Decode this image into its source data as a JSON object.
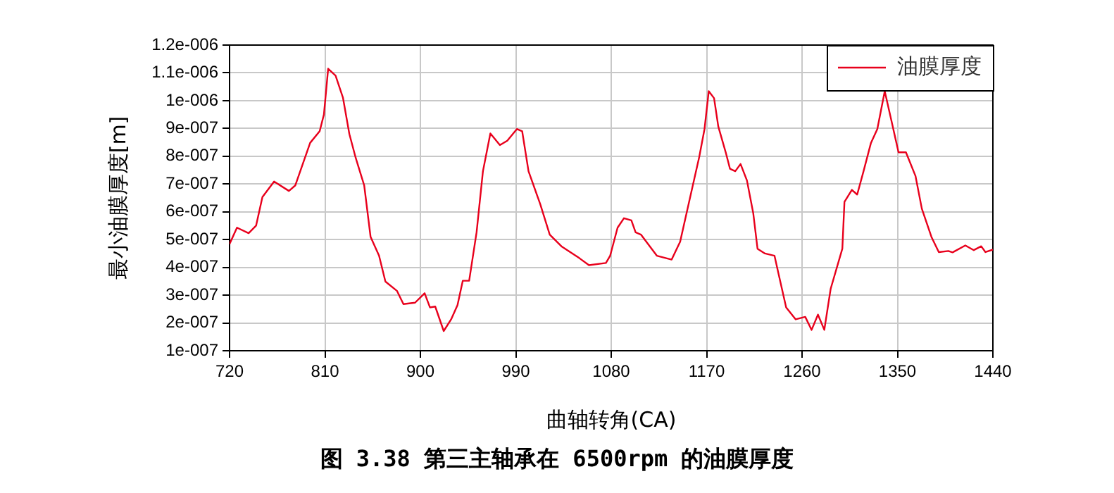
{
  "chart_data": {
    "type": "line",
    "title": "图 3.38 第三主轴承在 6500rpm 的油膜厚度",
    "xlabel": "曲轴转角(CA)",
    "ylabel": "最小油膜厚度[m]",
    "xlim": [
      720,
      1440
    ],
    "xticks": [
      720,
      810,
      900,
      990,
      1080,
      1170,
      1260,
      1350,
      1440
    ],
    "ylim": [
      1e-07,
      1.2e-06
    ],
    "yticks": [
      {
        "value": 1e-07,
        "label": "1e-007"
      },
      {
        "value": 2e-07,
        "label": "2e-007"
      },
      {
        "value": 3e-07,
        "label": "3e-007"
      },
      {
        "value": 4e-07,
        "label": "4e-007"
      },
      {
        "value": 5e-07,
        "label": "5e-007"
      },
      {
        "value": 6e-07,
        "label": "6e-007"
      },
      {
        "value": 7e-07,
        "label": "7e-007"
      },
      {
        "value": 8e-07,
        "label": "8e-007"
      },
      {
        "value": 9e-07,
        "label": "9e-007"
      },
      {
        "value": 1e-06,
        "label": "1e-006"
      },
      {
        "value": 1.1e-06,
        "label": "1.1e-006"
      },
      {
        "value": 1.2e-06,
        "label": "1.2e-006"
      }
    ],
    "grid": true,
    "legend": "top right",
    "marker": "none",
    "line_style": "solid",
    "x": [
      720,
      727,
      738,
      745,
      751,
      762,
      776,
      782,
      796,
      805,
      809,
      813,
      820,
      827,
      833,
      839,
      847,
      853,
      861,
      867,
      878,
      884,
      895,
      904,
      909,
      914,
      922,
      929,
      935,
      940,
      946,
      953,
      959,
      966,
      975,
      982,
      991,
      996,
      1002,
      1013,
      1022,
      1033,
      1050,
      1059,
      1075,
      1079,
      1086,
      1092,
      1099,
      1103,
      1108,
      1123,
      1137,
      1145,
      1154,
      1163,
      1168,
      1172,
      1177,
      1181,
      1188,
      1192,
      1197,
      1202,
      1208,
      1214,
      1218,
      1225,
      1234,
      1238,
      1245,
      1254,
      1263,
      1269,
      1275,
      1281,
      1287,
      1298,
      1300,
      1307,
      1312,
      1318,
      1325,
      1331,
      1338,
      1345,
      1351,
      1358,
      1367,
      1373,
      1382,
      1389,
      1398,
      1402,
      1414,
      1422,
      1429,
      1433,
      1440
    ],
    "series": [
      {
        "name": "油膜厚度",
        "color": "#e8001c",
        "values": [
          4.84e-07,
          5.43e-07,
          5.23e-07,
          5.5e-07,
          6.53e-07,
          7.09e-07,
          6.75e-07,
          6.95e-07,
          8.48e-07,
          8.9e-07,
          9.5e-07,
          1.115e-06,
          1.09e-06,
          1.01e-06,
          8.8e-07,
          7.94e-07,
          6.95e-07,
          5.1e-07,
          4.42e-07,
          3.49e-07,
          3.15e-07,
          2.68e-07,
          2.73e-07,
          3.07e-07,
          2.56e-07,
          2.59e-07,
          1.71e-07,
          2.13e-07,
          2.64e-07,
          3.52e-07,
          3.52e-07,
          5.26e-07,
          7.46e-07,
          8.82e-07,
          8.4e-07,
          8.56e-07,
          8.98e-07,
          8.9e-07,
          7.46e-07,
          6.28e-07,
          5.18e-07,
          4.76e-07,
          4.33e-07,
          4.08e-07,
          4.16e-07,
          4.42e-07,
          5.43e-07,
          5.77e-07,
          5.69e-07,
          5.26e-07,
          5.18e-07,
          4.42e-07,
          4.28e-07,
          4.92e-07,
          6.45e-07,
          7.97e-07,
          8.98e-07,
          1.034e-06,
          1.009e-06,
          9.07e-07,
          8.14e-07,
          7.55e-07,
          7.46e-07,
          7.72e-07,
          7.13e-07,
          5.94e-07,
          4.67e-07,
          4.5e-07,
          4.42e-07,
          3.74e-07,
          2.56e-07,
          2.13e-07,
          2.22e-07,
          1.75e-07,
          2.3e-07,
          1.75e-07,
          3.23e-07,
          4.67e-07,
          6.36e-07,
          6.79e-07,
          6.62e-07,
          7.46e-07,
          8.48e-07,
          8.98e-07,
          1.034e-06,
          9.16e-07,
          8.14e-07,
          8.14e-07,
          7.29e-07,
          6.11e-07,
          5.1e-07,
          4.55e-07,
          4.59e-07,
          4.54e-07,
          4.79e-07,
          4.62e-07,
          4.76e-07,
          4.55e-07,
          4.64e-07
        ]
      }
    ]
  }
}
